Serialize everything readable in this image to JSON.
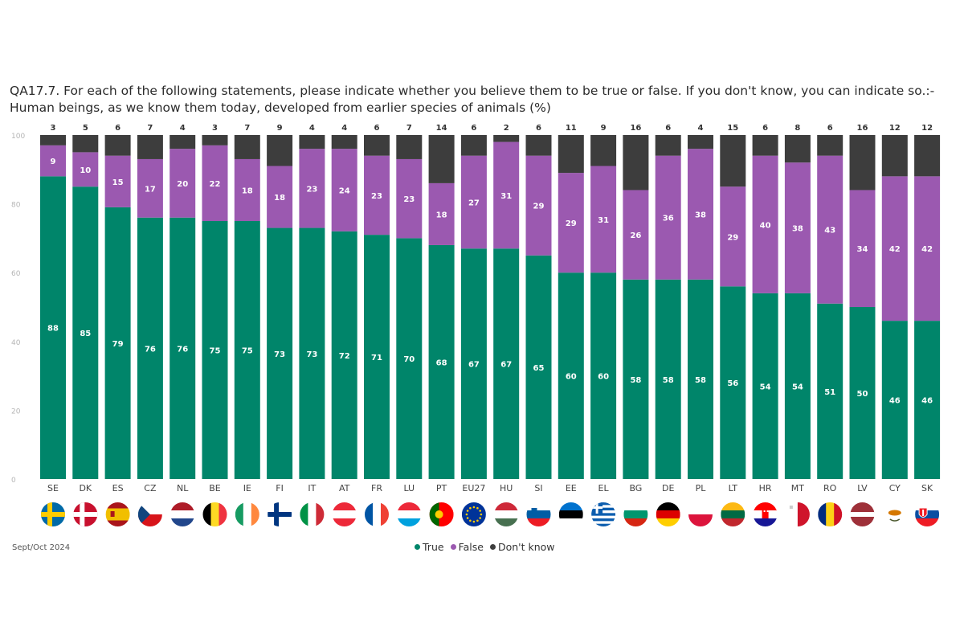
{
  "chart_data": {
    "type": "bar",
    "stacked": true,
    "title": "QA17.7. For each of the following statements, please indicate whether you believe them to be true or false. If you don't know, you can indicate so.:-Human beings, as we know them today, developed from earlier species of animals (%)",
    "categories": [
      "SE",
      "DK",
      "ES",
      "CZ",
      "NL",
      "BE",
      "IE",
      "FI",
      "IT",
      "AT",
      "FR",
      "LU",
      "PT",
      "EU27",
      "HU",
      "SI",
      "EE",
      "EL",
      "BG",
      "DE",
      "PL",
      "LT",
      "HR",
      "MT",
      "RO",
      "LV",
      "CY",
      "SK"
    ],
    "series": [
      {
        "name": "True",
        "color": "#00856a",
        "values": [
          88,
          85,
          79,
          76,
          76,
          75,
          75,
          73,
          73,
          72,
          71,
          70,
          68,
          67,
          67,
          65,
          60,
          60,
          58,
          58,
          58,
          56,
          54,
          54,
          51,
          50,
          46,
          46
        ]
      },
      {
        "name": "False",
        "color": "#9b59b0",
        "values": [
          9,
          10,
          15,
          17,
          20,
          22,
          18,
          18,
          23,
          24,
          23,
          23,
          18,
          27,
          31,
          29,
          29,
          31,
          26,
          36,
          38,
          29,
          40,
          38,
          43,
          34,
          42,
          42
        ]
      },
      {
        "name": "Don't know",
        "color": "#3d3d3d",
        "values": [
          3,
          5,
          6,
          7,
          4,
          3,
          7,
          9,
          4,
          4,
          6,
          7,
          14,
          6,
          2,
          6,
          11,
          9,
          16,
          6,
          4,
          15,
          6,
          8,
          6,
          16,
          12,
          12
        ]
      }
    ],
    "ylim": [
      0,
      100
    ],
    "yticks": [
      "0",
      "20",
      "40",
      "60",
      "80",
      "100"
    ],
    "legend": "bottom-center",
    "grid": false
  },
  "footer": {
    "source": "Sept/Oct 2024"
  },
  "flags": [
    "se",
    "dk",
    "es",
    "cz",
    "nl",
    "be",
    "ie",
    "fi",
    "it",
    "at",
    "fr",
    "lu",
    "pt",
    "eu",
    "hu",
    "si",
    "ee",
    "el",
    "bg",
    "de",
    "pl",
    "lt",
    "hr",
    "mt",
    "ro",
    "lv",
    "cy",
    "sk"
  ]
}
